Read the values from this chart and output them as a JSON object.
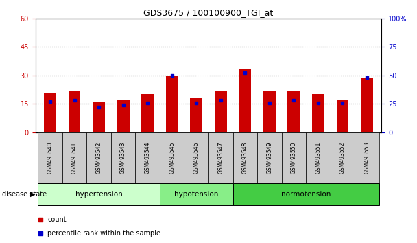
{
  "title": "GDS3675 / 100100900_TGI_at",
  "samples": [
    "GSM493540",
    "GSM493541",
    "GSM493542",
    "GSM493543",
    "GSM493544",
    "GSM493545",
    "GSM493546",
    "GSM493547",
    "GSM493548",
    "GSM493549",
    "GSM493550",
    "GSM493551",
    "GSM493552",
    "GSM493553"
  ],
  "counts": [
    21,
    22,
    16,
    17,
    20,
    30,
    18,
    22,
    33,
    22,
    22,
    20,
    17,
    29
  ],
  "percentiles": [
    27,
    28,
    22,
    24,
    26,
    50,
    26,
    28,
    52,
    26,
    28,
    26,
    26,
    48
  ],
  "groups": [
    {
      "label": "hypertension",
      "start": 0,
      "end": 5
    },
    {
      "label": "hypotension",
      "start": 5,
      "end": 8
    },
    {
      "label": "normotension",
      "start": 8,
      "end": 14
    }
  ],
  "group_colors": [
    "#ccffcc",
    "#88ee88",
    "#44cc44"
  ],
  "left_ylim": [
    0,
    60
  ],
  "right_ylim": [
    0,
    100
  ],
  "left_yticks": [
    0,
    15,
    30,
    45,
    60
  ],
  "right_yticks": [
    0,
    25,
    50,
    75,
    100
  ],
  "right_yticklabels": [
    "0",
    "25",
    "50",
    "75",
    "100%"
  ],
  "bar_color": "#cc0000",
  "dot_color": "#0000cc",
  "tick_label_bg": "#cccccc",
  "disease_state_label": "disease state",
  "legend_count": "count",
  "legend_pct": "percentile rank within the sample"
}
